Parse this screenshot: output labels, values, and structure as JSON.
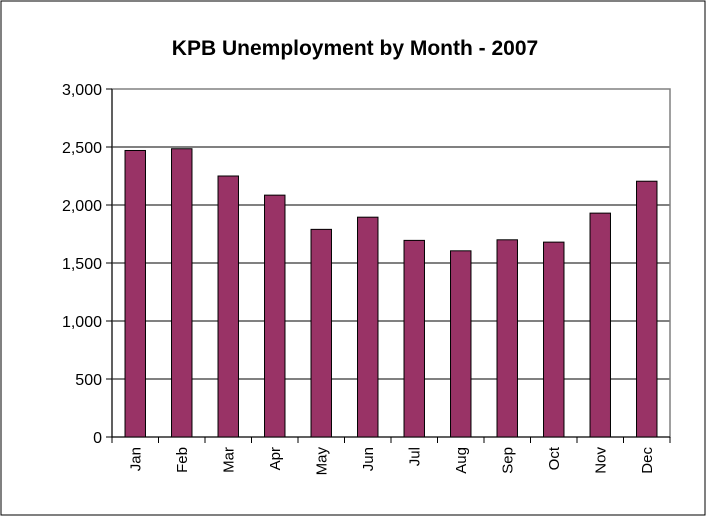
{
  "chart_data": {
    "type": "bar",
    "title": "KPB Unemployment by Month - 2007",
    "xlabel": "",
    "ylabel": "",
    "categories": [
      "Jan",
      "Feb",
      "Mar",
      "Apr",
      "May",
      "Jun",
      "Jul",
      "Aug",
      "Sep",
      "Oct",
      "Nov",
      "Dec"
    ],
    "values": [
      2470,
      2485,
      2250,
      2085,
      1790,
      1895,
      1695,
      1605,
      1700,
      1680,
      1930,
      2205
    ],
    "ylim": [
      0,
      3000
    ],
    "yticks": [
      0,
      500,
      1000,
      1500,
      2000,
      2500,
      3000
    ],
    "ytick_labels": [
      "0",
      "500",
      "1,000",
      "1,500",
      "2,000",
      "2,500",
      "3,000"
    ],
    "grid": "horizontal",
    "legend": "none",
    "colors": {
      "bar": "#993366",
      "bar_stroke": "#000000",
      "plot_border": "#808080",
      "gridline": "#000000",
      "frame": "#000000"
    }
  }
}
